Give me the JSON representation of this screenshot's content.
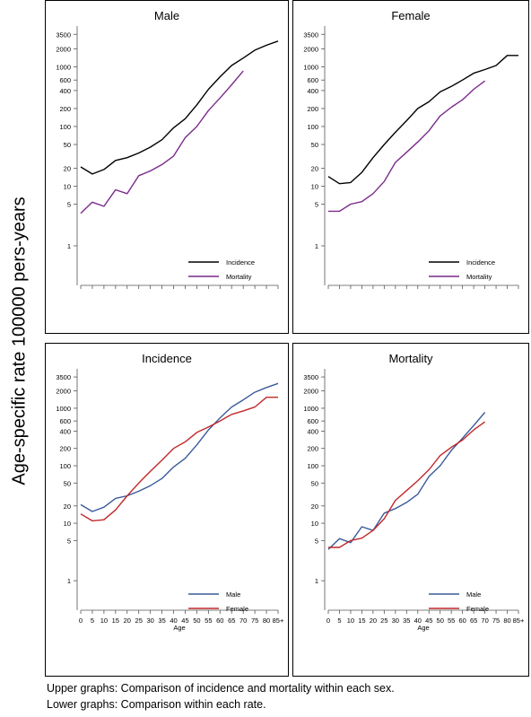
{
  "figure": {
    "y_axis_label": "Age-specific rate 100000 pers-years",
    "caption_lines": [
      "Upper graphs: Comparison of incidence and mortality within each sex.",
      "Lower graphs: Comparison within each rate."
    ]
  },
  "chart_data": [
    {
      "type": "line",
      "title": "Male",
      "xlabel": "",
      "ylabel": "Age-specific rate 100000 pers-years",
      "y_scale": "log",
      "ylim": [
        0.33,
        4200
      ],
      "y_ticks": [
        1,
        5,
        10,
        20,
        50,
        100,
        200,
        400,
        600,
        1000,
        2000,
        3500
      ],
      "x_ticks": [
        0,
        5,
        10,
        15,
        20,
        25,
        30,
        35,
        40,
        45,
        50,
        55,
        60,
        65,
        70,
        75,
        80,
        85
      ],
      "x_tick_labels_shown": false,
      "legend_position": "bottom-right",
      "series": [
        {
          "name": "Incidence",
          "color": "#000000",
          "x": [
            0,
            5,
            10,
            15,
            20,
            25,
            30,
            35,
            40,
            45,
            50,
            55,
            60,
            65,
            70,
            75,
            80,
            85
          ],
          "y": [
            21,
            16,
            19,
            27,
            30,
            36,
            45,
            60,
            95,
            135,
            230,
            420,
            680,
            1050,
            1400,
            1900,
            2300,
            2700
          ]
        },
        {
          "name": "Mortality",
          "color": "#7a2a8a",
          "x": [
            0,
            5,
            10,
            15,
            20,
            25,
            30,
            35,
            40,
            45,
            50,
            55,
            60,
            65,
            70
          ],
          "y": [
            3.5,
            5.4,
            4.6,
            8.7,
            7.5,
            15,
            18,
            23,
            32,
            65,
            100,
            185,
            300,
            500,
            850
          ]
        }
      ]
    },
    {
      "type": "line",
      "title": "Female",
      "xlabel": "",
      "ylabel": "Age-specific rate 100000 pers-years",
      "y_scale": "log",
      "ylim": [
        0.33,
        4200
      ],
      "y_ticks": [
        1,
        5,
        10,
        20,
        50,
        100,
        200,
        400,
        600,
        1000,
        2000,
        3500
      ],
      "x_ticks": [
        0,
        5,
        10,
        15,
        20,
        25,
        30,
        35,
        40,
        45,
        50,
        55,
        60,
        65,
        70,
        75,
        80,
        85
      ],
      "x_tick_labels_shown": false,
      "legend_position": "bottom-right",
      "series": [
        {
          "name": "Incidence",
          "color": "#000000",
          "x": [
            0,
            5,
            10,
            15,
            20,
            25,
            30,
            35,
            40,
            45,
            50,
            55,
            60,
            65,
            70,
            75,
            80,
            85
          ],
          "y": [
            14.5,
            11,
            11.5,
            17,
            30,
            50,
            80,
            125,
            200,
            260,
            380,
            470,
            600,
            780,
            900,
            1050,
            1550,
            1550
          ]
        },
        {
          "name": "Mortality",
          "color": "#7a2a8a",
          "x": [
            0,
            5,
            10,
            15,
            20,
            25,
            30,
            35,
            40,
            45,
            50,
            55,
            60,
            65,
            70
          ],
          "y": [
            3.8,
            3.8,
            5,
            5.5,
            7.5,
            12,
            25,
            37,
            55,
            85,
            150,
            210,
            280,
            420,
            580
          ]
        }
      ]
    },
    {
      "type": "line",
      "title": "Incidence",
      "xlabel": "Age",
      "ylabel": "Age-specific rate 100000 pers-years",
      "y_scale": "log",
      "ylim": [
        0.33,
        4200
      ],
      "y_ticks": [
        1,
        5,
        10,
        20,
        50,
        100,
        200,
        400,
        600,
        1000,
        2000,
        3500
      ],
      "x_ticks": [
        0,
        5,
        10,
        15,
        20,
        25,
        30,
        35,
        40,
        45,
        50,
        55,
        60,
        65,
        70,
        75,
        80,
        85
      ],
      "x_tick_labels": [
        "0",
        "5",
        "10",
        "15",
        "20",
        "25",
        "30",
        "35",
        "40",
        "45",
        "50",
        "55",
        "60",
        "65",
        "70",
        "75",
        "80",
        "85+"
      ],
      "legend_position": "bottom-right",
      "series": [
        {
          "name": "Male",
          "color": "#3a5a9a",
          "x": [
            0,
            5,
            10,
            15,
            20,
            25,
            30,
            35,
            40,
            45,
            50,
            55,
            60,
            65,
            70,
            75,
            80,
            85
          ],
          "y": [
            21,
            16,
            19,
            27,
            30,
            36,
            45,
            60,
            95,
            135,
            230,
            420,
            680,
            1050,
            1400,
            1900,
            2300,
            2700
          ]
        },
        {
          "name": "Female",
          "color": "#c0282a",
          "x": [
            0,
            5,
            10,
            15,
            20,
            25,
            30,
            35,
            40,
            45,
            50,
            55,
            60,
            65,
            70,
            75,
            80,
            85
          ],
          "y": [
            14.5,
            11,
            11.5,
            17,
            30,
            50,
            80,
            125,
            200,
            260,
            380,
            470,
            600,
            780,
            900,
            1050,
            1550,
            1550
          ]
        }
      ]
    },
    {
      "type": "line",
      "title": "Mortality",
      "xlabel": "Age",
      "ylabel": "Age-specific rate 100000 pers-years",
      "y_scale": "log",
      "ylim": [
        0.33,
        4200
      ],
      "y_ticks": [
        1,
        5,
        10,
        20,
        50,
        100,
        200,
        400,
        600,
        1000,
        2000,
        3500
      ],
      "x_ticks": [
        0,
        5,
        10,
        15,
        20,
        25,
        30,
        35,
        40,
        45,
        50,
        55,
        60,
        65,
        70,
        75,
        80,
        85
      ],
      "x_tick_labels": [
        "0",
        "5",
        "10",
        "15",
        "20",
        "25",
        "30",
        "35",
        "40",
        "45",
        "50",
        "55",
        "60",
        "65",
        "70",
        "75",
        "80",
        "85+"
      ],
      "legend_position": "bottom-right",
      "series": [
        {
          "name": "Male",
          "color": "#3a5a9a",
          "x": [
            0,
            5,
            10,
            15,
            20,
            25,
            30,
            35,
            40,
            45,
            50,
            55,
            60,
            65,
            70
          ],
          "y": [
            3.5,
            5.4,
            4.6,
            8.7,
            7.5,
            15,
            18,
            23,
            32,
            65,
            100,
            185,
            300,
            500,
            850
          ]
        },
        {
          "name": "Female",
          "color": "#c0282a",
          "x": [
            0,
            5,
            10,
            15,
            20,
            25,
            30,
            35,
            40,
            45,
            50,
            55,
            60,
            65,
            70
          ],
          "y": [
            3.8,
            3.8,
            5,
            5.5,
            7.5,
            12,
            25,
            37,
            55,
            85,
            150,
            210,
            280,
            420,
            580
          ]
        }
      ]
    }
  ]
}
